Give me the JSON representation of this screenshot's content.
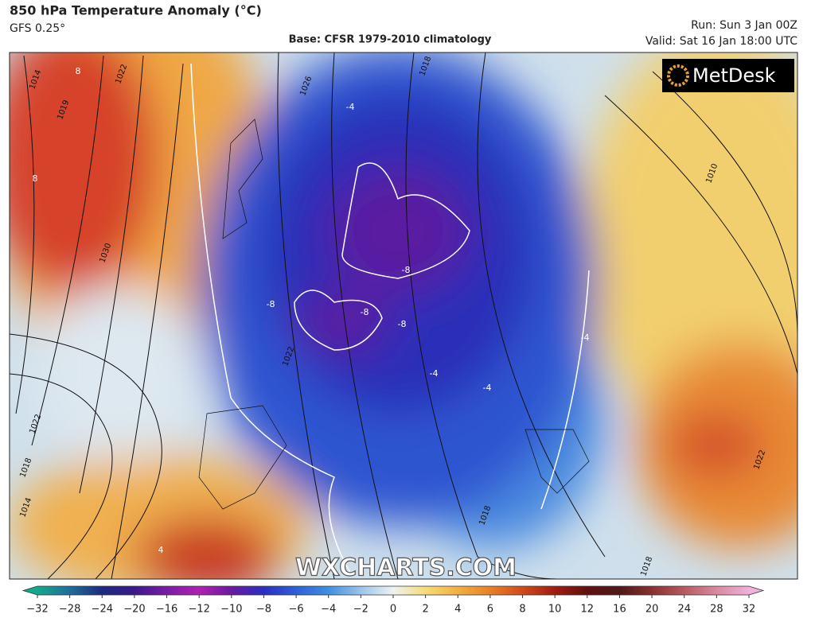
{
  "header": {
    "title": "850 hPa Temperature Anomaly (°C)",
    "model": "GFS 0.25°",
    "base": "Base: CFSR 1979-2010 climatology",
    "run": "Run: Sun 3 Jan 00Z",
    "valid": "Valid: Sat 16 Jan 18:00 UTC"
  },
  "logo": "MetDesk",
  "watermark": "WXCHARTS.COM",
  "map": {
    "isobar_labels": [
      1014,
      1019,
      1022,
      1030,
      1026,
      1018,
      1010,
      1022,
      1022,
      1018,
      1014,
      1018,
      1018,
      1022
    ],
    "anomaly_labels": [
      8,
      8,
      -4,
      -8,
      -8,
      -8,
      -8,
      -4,
      -4,
      -4,
      4
    ]
  },
  "colorbar": {
    "ticks": [
      {
        "value": -32,
        "label": "−32"
      },
      {
        "value": -28,
        "label": "−28"
      },
      {
        "value": -24,
        "label": "−24"
      },
      {
        "value": -20,
        "label": "−20"
      },
      {
        "value": -16,
        "label": "−16"
      },
      {
        "value": -12,
        "label": "−12"
      },
      {
        "value": -10,
        "label": "−10"
      },
      {
        "value": -8,
        "label": "−8"
      },
      {
        "value": -6,
        "label": "−6"
      },
      {
        "value": -4,
        "label": "−4"
      },
      {
        "value": -2,
        "label": "−2"
      },
      0,
      2,
      4,
      6,
      8,
      10,
      12,
      16,
      20,
      24,
      28,
      32
    ],
    "colors": [
      "#14a88c",
      "#1f6e9a",
      "#1c2a80",
      "#3a1a8a",
      "#7a1ca8",
      "#b020b0",
      "#6a1aa0",
      "#2a2fc0",
      "#2f5fd8",
      "#3f8fe2",
      "#9cc4ea",
      "#eef2f2",
      "#f6dc7a",
      "#f2b040",
      "#e88028",
      "#d04a1c",
      "#a01c10",
      "#601010",
      "#501818",
      "#8a3030",
      "#b85a60",
      "#d88aa0",
      "#f0b0d8"
    ]
  }
}
